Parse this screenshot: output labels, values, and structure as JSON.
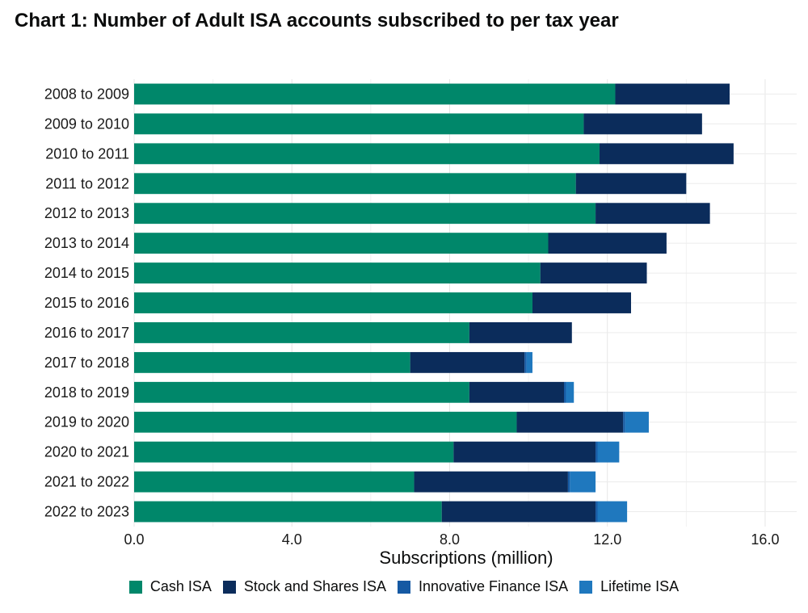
{
  "title": "Chart 1: Number of Adult ISA accounts subscribed to per tax year",
  "chart_data": {
    "type": "bar",
    "orientation": "horizontal",
    "stacked": true,
    "title": "Chart 1: Number of Adult ISA accounts subscribed to per tax year",
    "xlabel": "Subscriptions (million)",
    "ylabel": "",
    "xlim": [
      0,
      16.8
    ],
    "xticks": [
      0,
      4,
      8,
      12,
      16
    ],
    "xtick_labels": [
      "0.0",
      "4.0",
      "8.0",
      "12.0",
      "16.0"
    ],
    "grid": true,
    "legend_position": "bottom",
    "categories": [
      "2008 to 2009",
      "2009 to 2010",
      "2010 to 2011",
      "2011 to 2012",
      "2012 to 2013",
      "2013 to 2014",
      "2014 to 2015",
      "2015 to 2016",
      "2016 to 2017",
      "2017 to 2018",
      "2018 to 2019",
      "2019 to 2020",
      "2020 to 2021",
      "2021 to 2022",
      "2022 to 2023"
    ],
    "series": [
      {
        "name": "Cash ISA",
        "color": "#00876a",
        "values": [
          12.2,
          11.4,
          11.8,
          11.2,
          11.7,
          10.5,
          10.3,
          10.1,
          8.5,
          7.0,
          8.5,
          9.7,
          8.1,
          7.1,
          7.8
        ]
      },
      {
        "name": "Stock and Shares ISA",
        "color": "#0b2c5b",
        "values": [
          2.9,
          3.0,
          3.4,
          2.8,
          2.9,
          3.0,
          2.7,
          2.5,
          2.6,
          2.9,
          2.4,
          2.7,
          3.6,
          3.9,
          3.9
        ]
      },
      {
        "name": "Innovative Finance ISA",
        "color": "#1559a3",
        "values": [
          0,
          0,
          0,
          0,
          0,
          0,
          0,
          0,
          0,
          0.05,
          0.05,
          0.05,
          0.05,
          0.05,
          0.05
        ]
      },
      {
        "name": "Lifetime ISA",
        "color": "#1f78be",
        "values": [
          0,
          0,
          0,
          0,
          0,
          0,
          0,
          0,
          0,
          0.15,
          0.2,
          0.6,
          0.55,
          0.65,
          0.75
        ]
      }
    ]
  }
}
